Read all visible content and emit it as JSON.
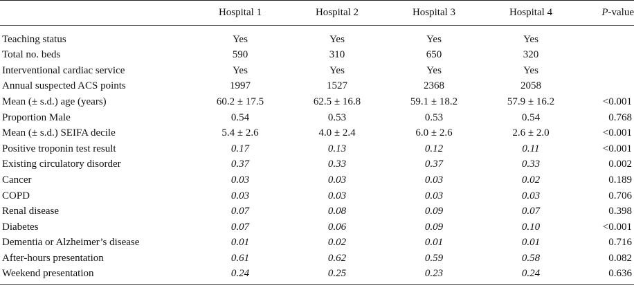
{
  "table": {
    "columns": {
      "label": "",
      "h1": "Hospital 1",
      "h2": "Hospital 2",
      "h3": "Hospital 3",
      "h4": "Hospital 4",
      "p_italic": "P",
      "p_rest": "-value"
    },
    "rows": [
      {
        "label": "Teaching status",
        "h1": "Yes",
        "h2": "Yes",
        "h3": "Yes",
        "h4": "Yes",
        "p": "",
        "italic": false
      },
      {
        "label": "Total no. beds",
        "h1": "590",
        "h2": "310",
        "h3": "650",
        "h4": "320",
        "p": "",
        "italic": false
      },
      {
        "label": "Interventional cardiac service",
        "h1": "Yes",
        "h2": "Yes",
        "h3": "Yes",
        "h4": "Yes",
        "p": "",
        "italic": false
      },
      {
        "label": "Annual suspected ACS points",
        "h1": "1997",
        "h2": "1527",
        "h3": "2368",
        "h4": "2058",
        "p": "",
        "italic": false
      },
      {
        "label": "Mean (± s.d.) age (years)",
        "h1": "60.2 ± 17.5",
        "h2": "62.5 ± 16.8",
        "h3": "59.1 ± 18.2",
        "h4": "57.9 ± 16.2",
        "p": "<0.001",
        "italic": false
      },
      {
        "label": "Proportion Male",
        "h1": "0.54",
        "h2": "0.53",
        "h3": "0.53",
        "h4": "0.54",
        "p": "0.768",
        "italic": false
      },
      {
        "label": "Mean (± s.d.) SEIFA decile",
        "h1": "5.4 ± 2.6",
        "h2": "4.0 ± 2.4",
        "h3": "6.0 ± 2.6",
        "h4": "2.6 ± 2.0",
        "p": "<0.001",
        "italic": false
      },
      {
        "label": "Positive troponin test result",
        "h1": "0.17",
        "h2": "0.13",
        "h3": "0.12",
        "h4": "0.11",
        "p": "<0.001",
        "italic": true
      },
      {
        "label": "Existing circulatory disorder",
        "h1": "0.37",
        "h2": "0.33",
        "h3": "0.37",
        "h4": "0.33",
        "p": "0.002",
        "italic": true
      },
      {
        "label": "Cancer",
        "h1": "0.03",
        "h2": "0.03",
        "h3": "0.03",
        "h4": "0.02",
        "p": "0.189",
        "italic": true
      },
      {
        "label": "COPD",
        "h1": "0.03",
        "h2": "0.03",
        "h3": "0.03",
        "h4": "0.03",
        "p": "0.706",
        "italic": true
      },
      {
        "label": "Renal disease",
        "h1": "0.07",
        "h2": "0.08",
        "h3": "0.09",
        "h4": "0.07",
        "p": "0.398",
        "italic": true
      },
      {
        "label": "Diabetes",
        "h1": "0.07",
        "h2": "0.06",
        "h3": "0.09",
        "h4": "0.10",
        "p": "<0.001",
        "italic": true
      },
      {
        "label": "Dementia or Alzheimer’s disease",
        "h1": "0.01",
        "h2": "0.02",
        "h3": "0.01",
        "h4": "0.01",
        "p": "0.716",
        "italic": true
      },
      {
        "label": "After-hours presentation",
        "h1": "0.61",
        "h2": "0.62",
        "h3": "0.59",
        "h4": "0.58",
        "p": "0.082",
        "italic": true
      },
      {
        "label": "Weekend presentation",
        "h1": "0.24",
        "h2": "0.25",
        "h3": "0.23",
        "h4": "0.24",
        "p": "0.636",
        "italic": true
      }
    ]
  }
}
